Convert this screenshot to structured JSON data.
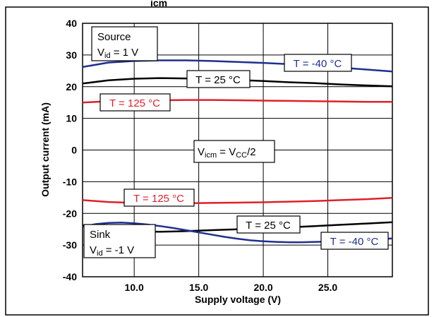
{
  "chart_data": {
    "type": "line",
    "title": "",
    "top_label_fragment": "icm",
    "xlabel": "Supply voltage (V)",
    "ylabel": "Output current (mA)",
    "xlim": [
      6,
      30
    ],
    "ylim": [
      -40,
      40
    ],
    "x_ticks": [
      10,
      15,
      20,
      25
    ],
    "x_tick_labels": [
      "10.0",
      "15.0",
      "20.0",
      "25.0"
    ],
    "y_ticks": [
      -40,
      -30,
      -20,
      -10,
      0,
      10,
      20,
      30,
      40
    ],
    "y_tick_labels": [
      "-40",
      "-30",
      "-20",
      "-10",
      "0",
      "10",
      "20",
      "30",
      "40"
    ],
    "grid": true,
    "series": [
      {
        "name": "T = -40 °C",
        "group": "source",
        "color": "#1f2f8f",
        "x": [
          6,
          8,
          10,
          12,
          14,
          16,
          18,
          20,
          22,
          24,
          26,
          28,
          30
        ],
        "y": [
          26.2,
          27.6,
          28.1,
          28.3,
          28.3,
          28.1,
          27.8,
          27.5,
          27.1,
          26.6,
          26.0,
          25.4,
          24.8
        ]
      },
      {
        "name": "T = 25 °C",
        "group": "source",
        "color": "#000000",
        "x": [
          6,
          8,
          10,
          12,
          14,
          16,
          18,
          20,
          22,
          24,
          26,
          28,
          30
        ],
        "y": [
          21.0,
          22.0,
          22.5,
          22.7,
          22.6,
          22.4,
          22.1,
          21.8,
          21.4,
          21.1,
          20.7,
          20.4,
          20.1
        ]
      },
      {
        "name": "T = 125 °C",
        "group": "source",
        "color": "#e0202a",
        "x": [
          6,
          8,
          10,
          12,
          14,
          16,
          18,
          20,
          22,
          24,
          26,
          28,
          30
        ],
        "y": [
          15.0,
          15.4,
          15.6,
          15.7,
          15.8,
          15.8,
          15.7,
          15.6,
          15.5,
          15.4,
          15.3,
          15.2,
          15.2
        ]
      },
      {
        "name": "T = 125 °C",
        "group": "sink",
        "color": "#e0202a",
        "x": [
          6,
          8,
          10,
          12,
          14,
          16,
          18,
          20,
          22,
          24,
          26,
          28,
          30
        ],
        "y": [
          -15.8,
          -16.4,
          -16.7,
          -16.8,
          -16.8,
          -16.7,
          -16.6,
          -16.5,
          -16.3,
          -16.1,
          -15.8,
          -15.5,
          -15.1
        ]
      },
      {
        "name": "T = 25 °C",
        "group": "sink",
        "color": "#000000",
        "x": [
          6,
          8,
          10,
          12,
          14,
          16,
          18,
          20,
          22,
          24,
          26,
          28,
          30
        ],
        "y": [
          -23.8,
          -25.3,
          -25.7,
          -25.8,
          -25.6,
          -25.3,
          -25.0,
          -24.7,
          -24.4,
          -24.0,
          -23.6,
          -23.2,
          -22.8
        ]
      },
      {
        "name": "T = -40 °C",
        "group": "sink",
        "color": "#1f2f8f",
        "x": [
          6,
          7,
          8,
          9,
          10,
          11,
          12,
          13,
          14,
          15,
          16,
          17,
          18,
          19,
          20,
          21,
          22,
          23,
          24,
          25,
          26,
          27,
          28,
          29,
          30
        ],
        "y": [
          -24.2,
          -23.4,
          -23.0,
          -22.9,
          -23.1,
          -23.5,
          -24.0,
          -24.6,
          -25.3,
          -26.0,
          -26.7,
          -27.4,
          -28.0,
          -28.5,
          -28.8,
          -29.0,
          -29.1,
          -29.1,
          -29.0,
          -28.9,
          -28.7,
          -28.5,
          -28.3,
          -28.1,
          -27.9
        ]
      }
    ],
    "annotations": {
      "source_title": "Source",
      "source_cond_v": "V",
      "source_cond_sub": "id",
      "source_cond_val": " = 1 V",
      "sink_title": "Sink",
      "sink_cond_v": "V",
      "sink_cond_sub": "id",
      "sink_cond_val": " = -1 V",
      "center_v1": "V",
      "center_sub1": "icm",
      "center_eq": " = V",
      "center_sub2": "CC",
      "center_tail": "/2",
      "lbl_m40_top": "T = -40 °C",
      "lbl_25_top": "T = 25 °C",
      "lbl_125_top": "T = 125 °C",
      "lbl_125_bot": "T = 125 °C",
      "lbl_25_bot": "T = 25 °C",
      "lbl_m40_bot": "T = -40 °C"
    }
  }
}
